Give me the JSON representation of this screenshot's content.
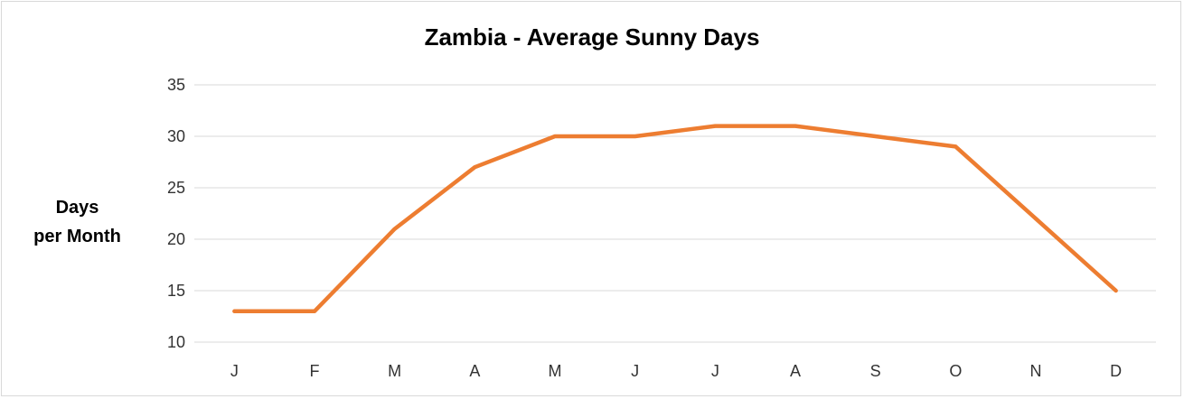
{
  "chart_data": {
    "type": "line",
    "title": "Zambia - Average Sunny Days",
    "ylabel_lines": [
      "Days",
      "per Month"
    ],
    "xlabel": "",
    "categories": [
      "J",
      "F",
      "M",
      "A",
      "M",
      "J",
      "J",
      "A",
      "S",
      "O",
      "N",
      "D"
    ],
    "series": [
      {
        "values": [
          13,
          13,
          21,
          27,
          30,
          30,
          31,
          31,
          30,
          29,
          22,
          15
        ],
        "color": "#ED7D31"
      }
    ],
    "ylim": [
      10,
      35
    ],
    "yticks": [
      10,
      15,
      20,
      25,
      30,
      35
    ],
    "grid": true,
    "legend": "none"
  }
}
